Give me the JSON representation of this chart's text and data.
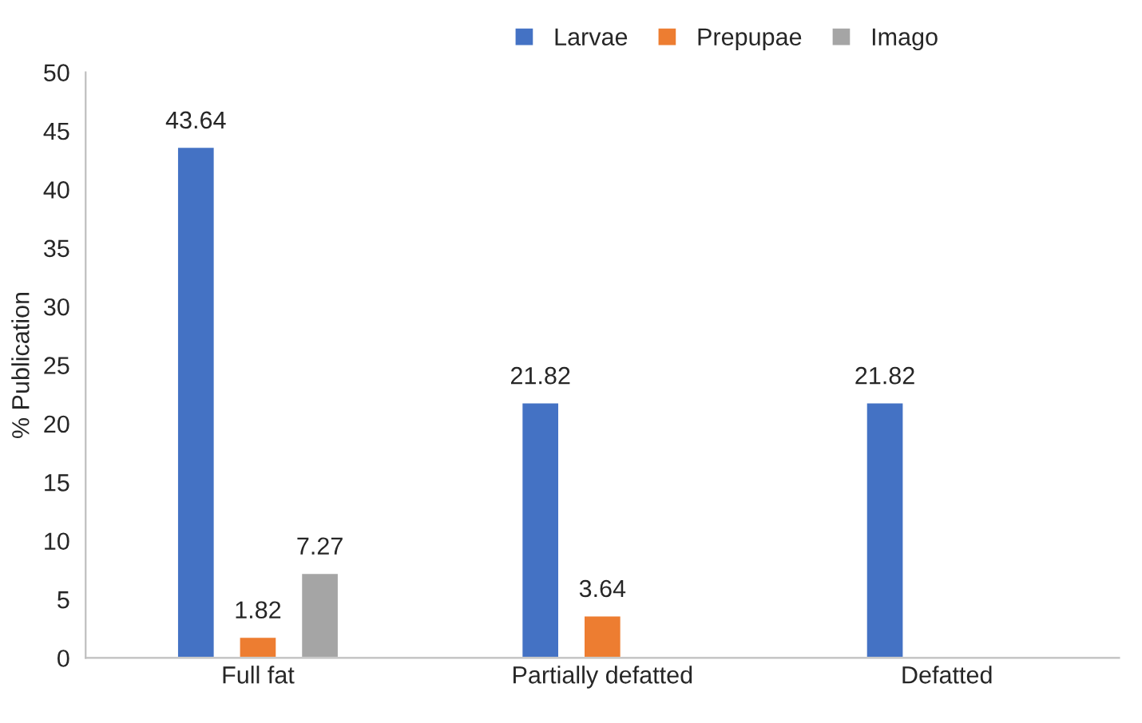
{
  "chart_data": {
    "type": "bar",
    "ylabel": "% Publication",
    "categories": [
      "Full fat",
      "Partially defatted",
      "Defatted"
    ],
    "series": [
      {
        "name": "Larvae",
        "color": "#4472c4",
        "values": [
          43.64,
          21.82,
          21.82
        ]
      },
      {
        "name": "Prepupae",
        "color": "#ed7d31",
        "values": [
          1.82,
          3.64,
          null
        ]
      },
      {
        "name": "Imago",
        "color": "#a5a5a5",
        "values": [
          7.27,
          null,
          null
        ]
      }
    ],
    "ylim": [
      0,
      50
    ],
    "yticks": [
      0,
      5,
      10,
      15,
      20,
      25,
      30,
      35,
      40,
      45,
      50
    ],
    "data_labels": true,
    "legend": "top",
    "grid": false
  }
}
